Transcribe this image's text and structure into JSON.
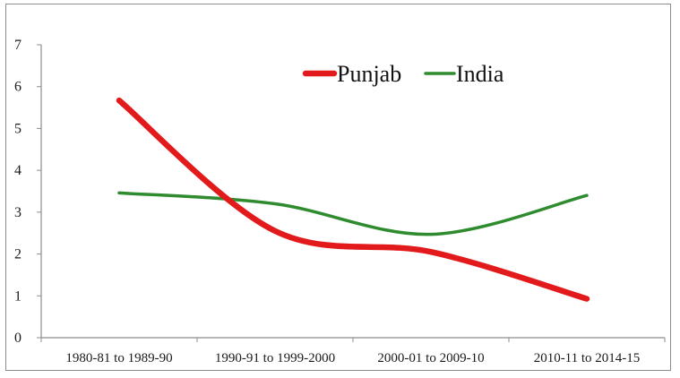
{
  "chart_data": {
    "type": "line",
    "title": "",
    "xlabel": "",
    "ylabel": "",
    "ylim": [
      0,
      7
    ],
    "yticks": [
      "0",
      "1",
      "2",
      "3",
      "4",
      "5",
      "6",
      "7"
    ],
    "categories": [
      "1980-81 to 1989-90",
      "1990-91 to 1999-2000",
      "2000-01 to 2009-10",
      "2010-11 to 2014-15"
    ],
    "series": [
      {
        "name": "Punjab",
        "color": "#e31a1c",
        "values": [
          5.67,
          2.55,
          2.05,
          0.93
        ]
      },
      {
        "name": "India",
        "color": "#2e8b2e",
        "values": [
          3.46,
          3.2,
          2.47,
          3.4
        ]
      }
    ],
    "grid": false,
    "legend": "top-right"
  }
}
